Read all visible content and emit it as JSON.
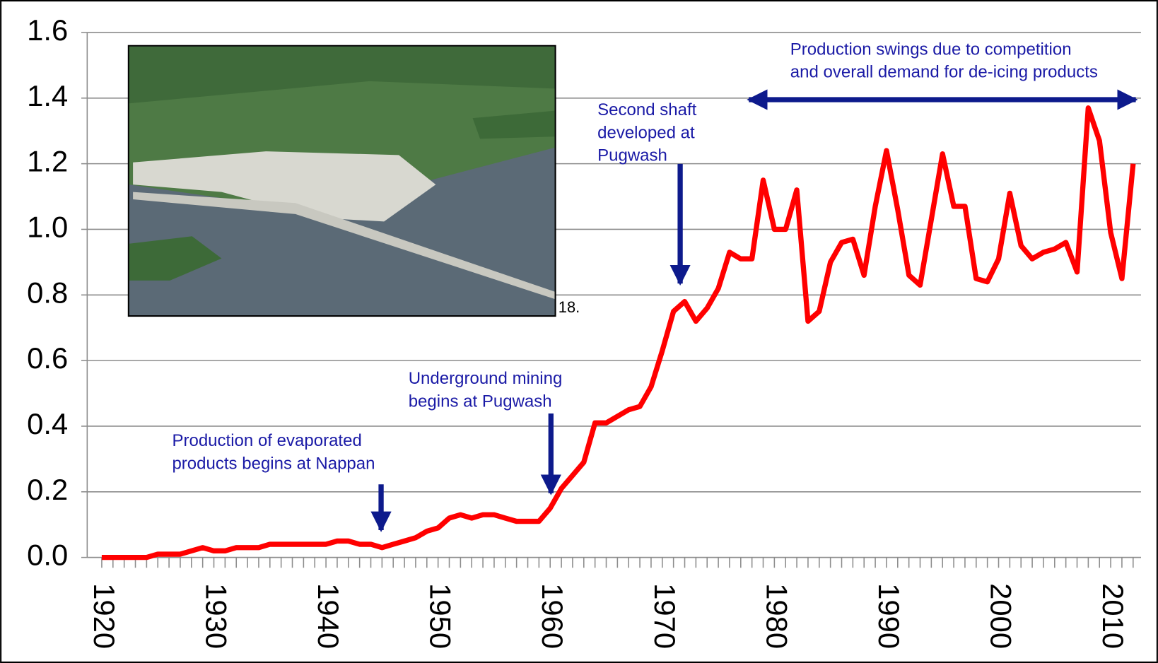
{
  "chart_data": {
    "type": "line",
    "x": [
      1920,
      1921,
      1922,
      1923,
      1924,
      1925,
      1926,
      1927,
      1928,
      1929,
      1930,
      1931,
      1932,
      1933,
      1934,
      1935,
      1936,
      1937,
      1938,
      1939,
      1940,
      1941,
      1942,
      1943,
      1944,
      1945,
      1946,
      1947,
      1948,
      1949,
      1950,
      1951,
      1952,
      1953,
      1954,
      1955,
      1956,
      1957,
      1958,
      1959,
      1960,
      1961,
      1962,
      1963,
      1964,
      1965,
      1966,
      1967,
      1968,
      1969,
      1970,
      1971,
      1972,
      1973,
      1974,
      1975,
      1976,
      1977,
      1978,
      1979,
      1980,
      1981,
      1982,
      1983,
      1984,
      1985,
      1986,
      1987,
      1988,
      1989,
      1990,
      1991,
      1992,
      1993,
      1994,
      1995,
      1996,
      1997,
      1998,
      1999,
      2000,
      2001,
      2002,
      2003,
      2004,
      2005,
      2006,
      2007,
      2008,
      2009,
      2010,
      2011,
      2012
    ],
    "series": [
      {
        "color": "#ff0000",
        "values": [
          0,
          0,
          0,
          0,
          0,
          0.01,
          0.01,
          0.01,
          0.02,
          0.03,
          0.02,
          0.02,
          0.03,
          0.03,
          0.03,
          0.04,
          0.04,
          0.04,
          0.04,
          0.04,
          0.04,
          0.05,
          0.05,
          0.04,
          0.04,
          0.03,
          0.04,
          0.05,
          0.06,
          0.08,
          0.09,
          0.12,
          0.13,
          0.12,
          0.13,
          0.13,
          0.12,
          0.11,
          0.11,
          0.11,
          0.15,
          0.21,
          0.25,
          0.29,
          0.41,
          0.41,
          0.43,
          0.45,
          0.46,
          0.52,
          0.63,
          0.75,
          0.78,
          0.72,
          0.76,
          0.82,
          0.93,
          0.91,
          0.91,
          1.15,
          1.0,
          1.0,
          1.12,
          0.72,
          0.75,
          0.9,
          0.96,
          0.97,
          0.86,
          1.07,
          1.24,
          1.06,
          0.86,
          0.83,
          1.03,
          1.23,
          1.07,
          1.07,
          0.85,
          0.84,
          0.91,
          1.11,
          0.95,
          0.91,
          0.93,
          0.94,
          0.96,
          0.87,
          1.37,
          1.27,
          0.99,
          0.85,
          1.2
        ]
      }
    ],
    "xlim": [
      1918.7,
      2012.7
    ],
    "xticks": [
      1920,
      1930,
      1940,
      1950,
      1960,
      1970,
      1980,
      1990,
      2000,
      2010
    ],
    "ylim": [
      0,
      1.6
    ],
    "yticks": [
      {
        "value": 0,
        "label": "0.0"
      },
      {
        "value": 0.2,
        "label": "0.2"
      },
      {
        "value": 0.4,
        "label": "0.4"
      },
      {
        "value": 0.6,
        "label": "0.6"
      },
      {
        "value": 0.8,
        "label": "0.8"
      },
      {
        "value": 1,
        "label": "1.0"
      },
      {
        "value": 1.2,
        "label": "1.2"
      },
      {
        "value": 1.4,
        "label": "1.4"
      },
      {
        "value": 1.6,
        "label": "1.6"
      }
    ],
    "grid": true,
    "annotations": [
      {
        "lines": [
          "Production of evaporated",
          "products begins at Nappan"
        ]
      },
      {
        "lines": [
          "Underground mining",
          "begins at Pugwash"
        ]
      },
      {
        "lines": [
          "Second shaft",
          "developed at",
          "Pugwash"
        ]
      },
      {
        "lines": [
          "Production swings due to competition",
          "and overall demand for de-icing products"
        ]
      }
    ],
    "image_caption": "18."
  }
}
